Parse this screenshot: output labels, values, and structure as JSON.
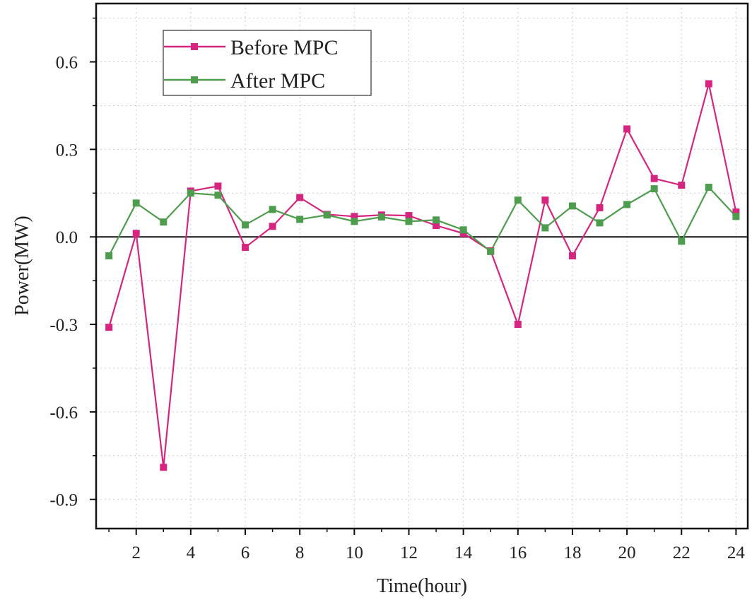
{
  "chart_data": {
    "type": "line",
    "title": "",
    "xlabel": "Time(hour)",
    "ylabel": "Power(MW)",
    "x": [
      1,
      2,
      3,
      4,
      5,
      6,
      7,
      8,
      9,
      10,
      11,
      12,
      13,
      14,
      15,
      16,
      17,
      18,
      19,
      20,
      21,
      22,
      23,
      24
    ],
    "xlim": [
      0.53,
      24.43
    ],
    "ylim": [
      -1.0,
      0.8
    ],
    "xticks": [
      2,
      4,
      6,
      8,
      10,
      12,
      14,
      16,
      18,
      20,
      22,
      24
    ],
    "xtick_labels": [
      "2",
      "4",
      "6",
      "8",
      "10",
      "12",
      "14",
      "16",
      "18",
      "20",
      "22",
      "24"
    ],
    "yticks": [
      -0.9,
      -0.6,
      -0.3,
      0.0,
      0.3,
      0.6
    ],
    "ytick_labels": [
      "-0.9",
      "-0.6",
      "-0.3",
      "0.0",
      "0.3",
      "0.6"
    ],
    "grid": true,
    "legend_position": "top-left",
    "series": [
      {
        "name": "Before MPC",
        "color": "#d6257f",
        "values": [
          -0.31,
          0.012,
          -0.79,
          0.157,
          0.174,
          -0.036,
          0.036,
          0.135,
          0.077,
          0.07,
          0.075,
          0.073,
          0.039,
          0.012,
          -0.048,
          -0.3,
          0.126,
          -0.065,
          0.1,
          0.37,
          0.2,
          0.177,
          0.525,
          0.085
        ]
      },
      {
        "name": "After MPC",
        "color": "#4e9d4e",
        "values": [
          -0.065,
          0.116,
          0.051,
          0.15,
          0.143,
          0.041,
          0.094,
          0.06,
          0.075,
          0.053,
          0.068,
          0.053,
          0.058,
          0.024,
          -0.05,
          0.126,
          0.031,
          0.106,
          0.048,
          0.111,
          0.165,
          -0.015,
          0.17,
          0.07
        ]
      }
    ]
  }
}
